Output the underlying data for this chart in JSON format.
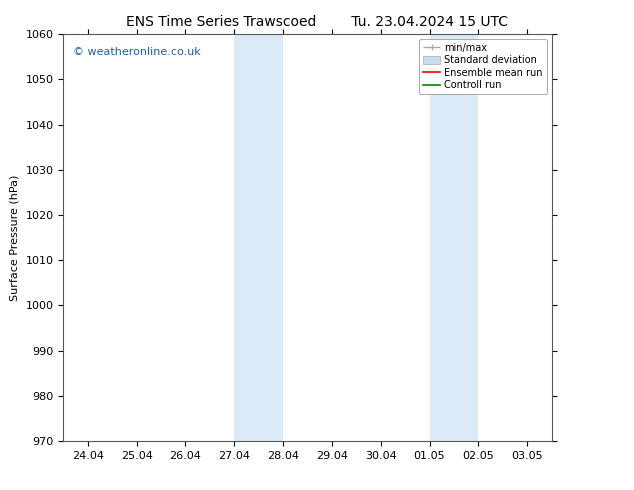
{
  "title_left": "ENS Time Series Trawscoed",
  "title_right": "Tu. 23.04.2024 15 UTC",
  "ylabel": "Surface Pressure (hPa)",
  "ylim": [
    970,
    1060
  ],
  "yticks": [
    970,
    980,
    990,
    1000,
    1010,
    1020,
    1030,
    1040,
    1050,
    1060
  ],
  "xtick_labels": [
    "24.04",
    "25.04",
    "26.04",
    "27.04",
    "28.04",
    "29.04",
    "30.04",
    "01.05",
    "02.05",
    "03.05"
  ],
  "xtick_positions": [
    0,
    1,
    2,
    3,
    4,
    5,
    6,
    7,
    8,
    9
  ],
  "xlim": [
    -0.5,
    9.5
  ],
  "shaded_bands": [
    {
      "x_start": 3.0,
      "x_end": 4.0
    },
    {
      "x_start": 7.0,
      "x_end": 8.0
    }
  ],
  "shaded_color": "#daeaf7",
  "watermark_text": "© weatheronline.co.uk",
  "watermark_color": "#1a5fa8",
  "background_color": "#ffffff",
  "spine_color": "#555555",
  "legend_minmax_color": "#aaaaaa",
  "legend_std_color": "#c8dced",
  "legend_ens_color": "#ff0000",
  "legend_ctrl_color": "#008800",
  "title_fontsize": 10,
  "ylabel_fontsize": 8,
  "tick_fontsize": 8,
  "watermark_fontsize": 8,
  "legend_fontsize": 7
}
